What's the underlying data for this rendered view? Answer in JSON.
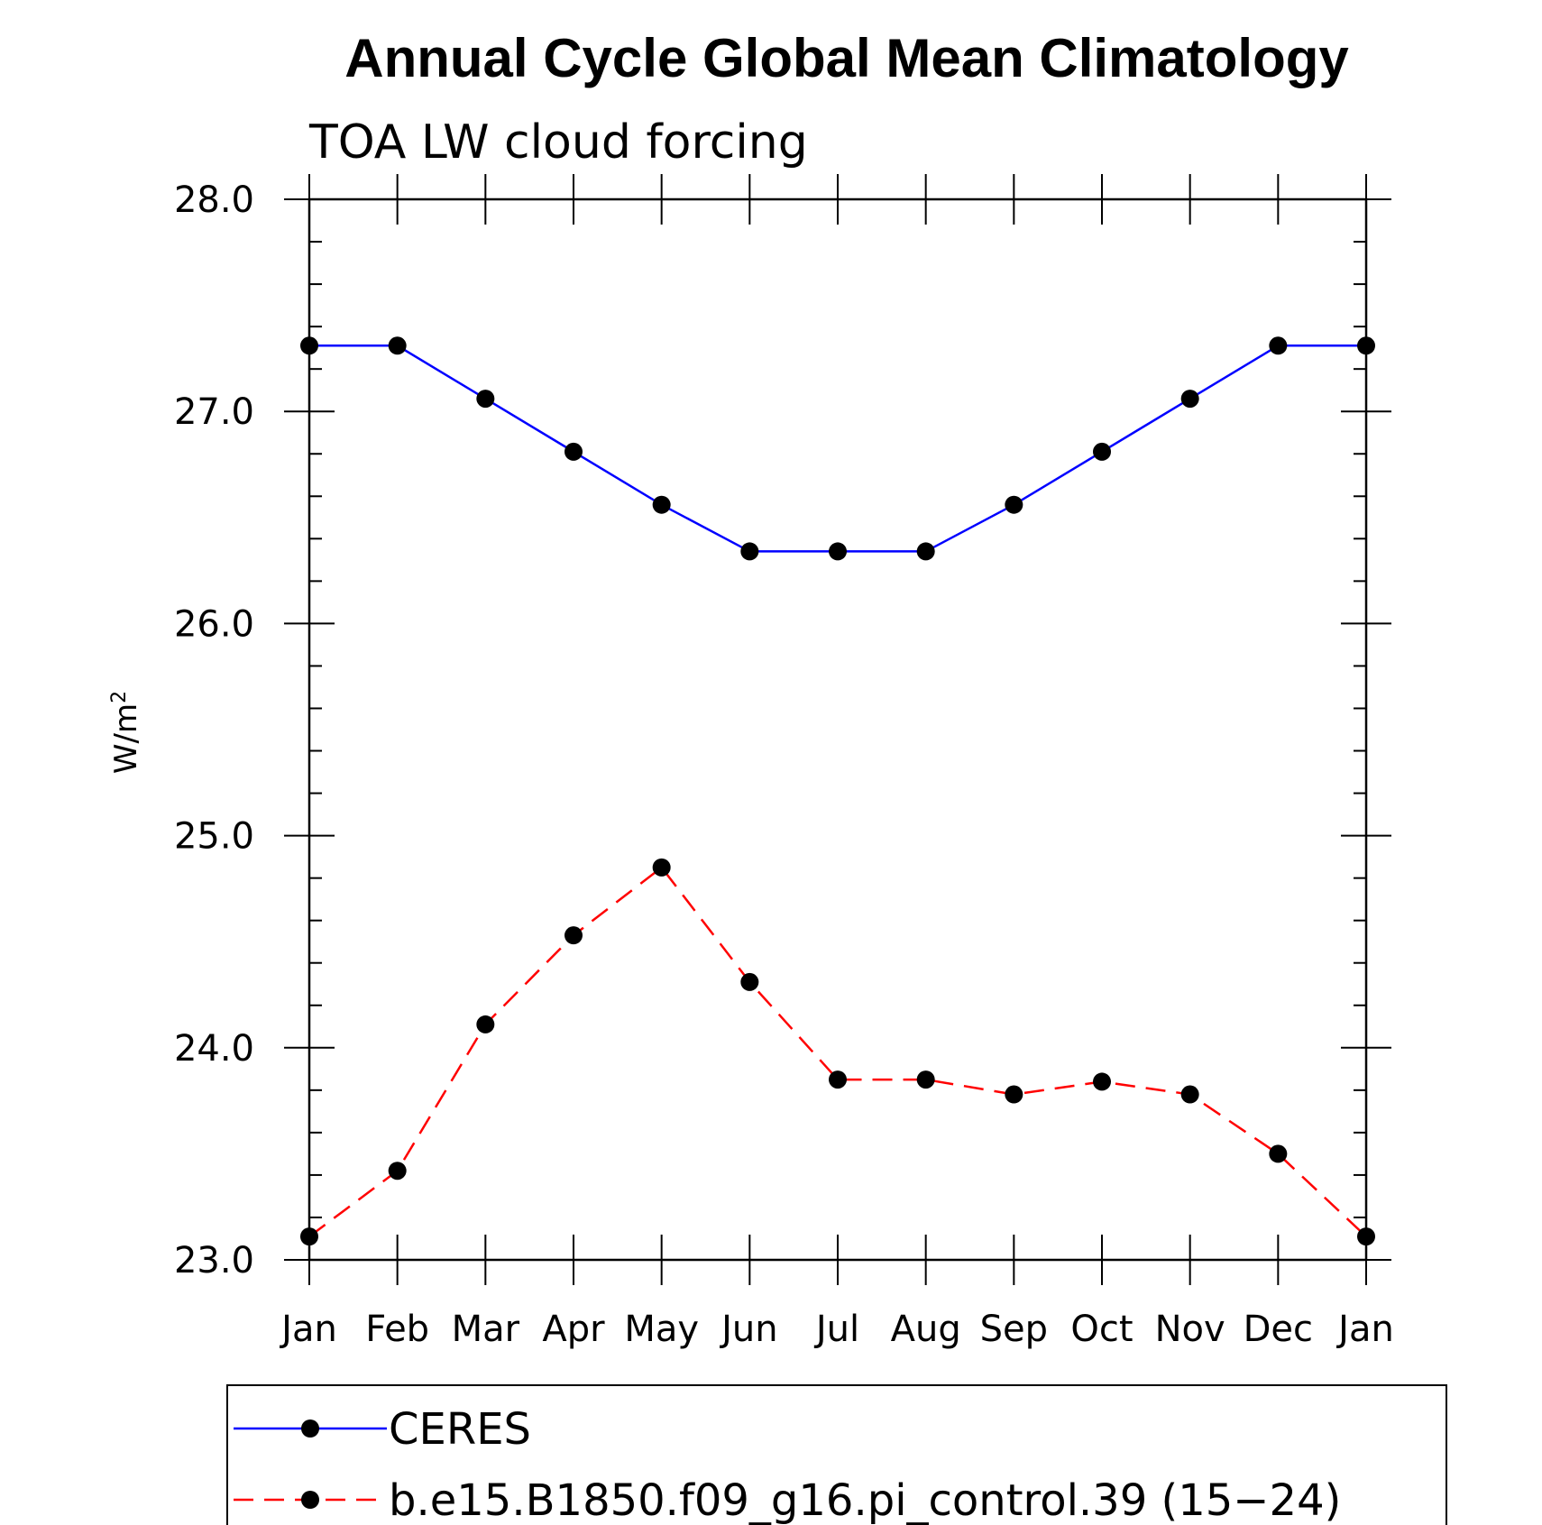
{
  "chart_data": {
    "type": "line",
    "title": "Annual Cycle Global Mean Climatology",
    "subtitle": "TOA LW cloud forcing",
    "xlabel": "",
    "ylabel_base": "W/m",
    "ylabel_sup": "2",
    "categories": [
      "Jan",
      "Feb",
      "Mar",
      "Apr",
      "May",
      "Jun",
      "Jul",
      "Aug",
      "Sep",
      "Oct",
      "Nov",
      "Dec",
      "Jan"
    ],
    "ylim": [
      23.0,
      28.0
    ],
    "yticks": [
      "23.0",
      "24.0",
      "25.0",
      "26.0",
      "27.0",
      "28.0"
    ],
    "grid": false,
    "legend_position": "bottom",
    "series": [
      {
        "name": "CERES",
        "color": "#0000ff",
        "dashed": false,
        "values": [
          27.31,
          27.31,
          27.06,
          26.81,
          26.56,
          26.34,
          26.34,
          26.34,
          26.56,
          26.81,
          27.06,
          27.31,
          27.31
        ]
      },
      {
        "name": "b.e15.B1850.f09_g16.pi_control.39 (15−24)",
        "color": "#ff0000",
        "dashed": true,
        "values": [
          23.11,
          23.42,
          24.11,
          24.53,
          24.85,
          24.31,
          23.85,
          23.85,
          23.78,
          23.84,
          23.78,
          23.5,
          23.11
        ]
      }
    ]
  }
}
